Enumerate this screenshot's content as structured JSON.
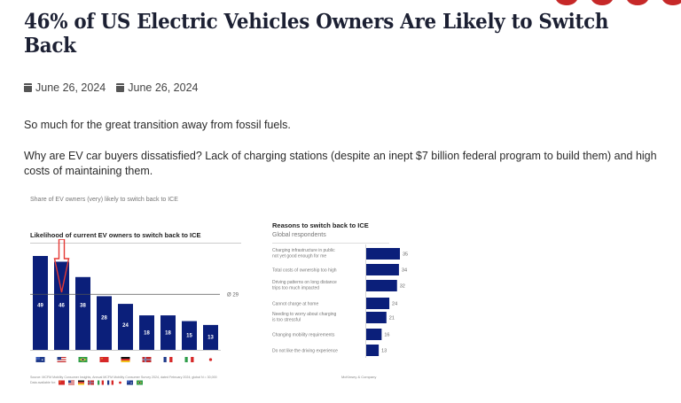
{
  "share_buttons": [
    "share-button-1",
    "share-button-2",
    "share-button-3",
    "share-button-4"
  ],
  "article": {
    "title": "46% of US Electric Vehicles Owners Are Likely to Switch Back",
    "dates": [
      {
        "icon": "calendar-icon",
        "label": "June 26, 2024"
      },
      {
        "icon": "calendar-icon",
        "label": "June 26, 2024"
      }
    ],
    "paragraphs": [
      "So much for the great transition away from fossil fuels.",
      "Why are EV car buyers dissatisfied? Lack of charging stations (despite an inept $7 billion federal program to build them) and high costs of maintaining them."
    ]
  },
  "figure": {
    "caption": "Share of EV owners (very) likely to switch back to ICE",
    "source": "Source: MCFM Mobility Consumer Insights, Annual MCFM Mobility Consumer Survey 2024, dated February 2024; global N = 30,000",
    "data_available_label": "Data available for:",
    "data_available_flags": [
      "CN",
      "US",
      "DE",
      "NO",
      "IT",
      "FR",
      "JP",
      "AU",
      "BR"
    ],
    "brand": "McKinsey & Company",
    "highlight_color": "#e53935",
    "bar_color": "#0b1f7a"
  },
  "chart_data": [
    {
      "type": "bar",
      "title": "Likelihood of current EV owners to switch back to ICE",
      "categories": [
        "Australia",
        "United States",
        "Brazil",
        "China",
        "Germany",
        "Norway",
        "France",
        "Italy",
        "Japan"
      ],
      "category_flags": [
        "AU",
        "US",
        "BR",
        "CN",
        "DE",
        "NO",
        "FR",
        "IT",
        "JP"
      ],
      "values": [
        49,
        46,
        38,
        28,
        24,
        18,
        18,
        15,
        13
      ],
      "unit": "%",
      "average": {
        "label": "Ø 29",
        "value": 29
      },
      "highlight_index": 1,
      "ylim": [
        0,
        55
      ],
      "xlabel": "",
      "ylabel": "",
      "grid": false
    },
    {
      "type": "bar",
      "orientation": "horizontal",
      "title": "Reasons to switch back to ICE",
      "subtitle": "Global respondents",
      "categories": [
        "Charging infrastructure in public not yet good enough for me",
        "Total costs of ownership too high",
        "Driving patterns on long distance trips too much impacted",
        "Cannot charge at home",
        "Needing to worry about charging is too stressful",
        "Changing mobility requirements",
        "Do not like the driving experience"
      ],
      "category_lines": [
        [
          "Charging infrastructure in public",
          "not yet good enough for me"
        ],
        [
          "Total costs of ownership too high"
        ],
        [
          "Driving patterns on long distance",
          "trips too much impacted"
        ],
        [
          "Cannot charge at home"
        ],
        [
          "Needing to worry about charging",
          "is too stressful"
        ],
        [
          "Changing mobility requirements"
        ],
        [
          "Do not like the driving experience"
        ]
      ],
      "values": [
        35,
        34,
        32,
        24,
        21,
        16,
        13
      ],
      "unit": "%",
      "xlim": [
        0,
        35
      ],
      "grid": false
    }
  ]
}
